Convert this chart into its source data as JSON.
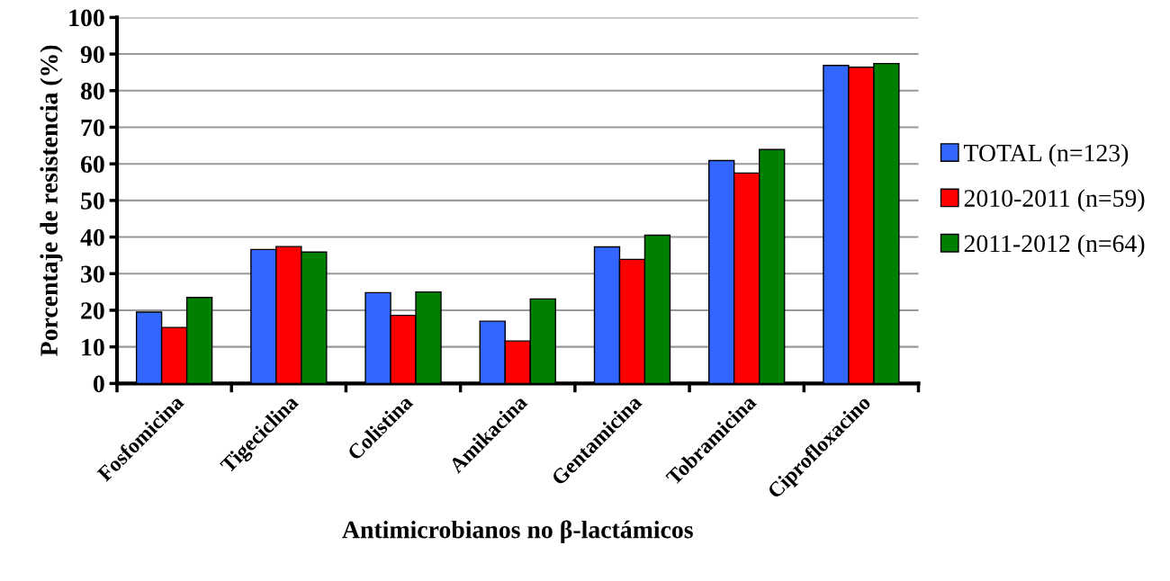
{
  "chart_data": {
    "type": "bar",
    "xlabel": "Antimicrobianos no β-lactámicos",
    "ylabel": "Porcentaje de resistencia (%)",
    "categories": [
      "Fosfomicina",
      "Tigeciclina",
      "Colistina",
      "Amikacina",
      "Gentamicina",
      "Tobramicina",
      "Ciprofloxacino"
    ],
    "series": [
      {
        "name": "TOTAL (n=123)",
        "color": "#3366ff",
        "values": [
          19.5,
          36.6,
          24.8,
          17.0,
          37.3,
          60.9,
          86.9
        ]
      },
      {
        "name": "2010-2011 (n=59)",
        "color": "#ff0000",
        "values": [
          15.3,
          37.4,
          18.6,
          11.6,
          33.9,
          57.5,
          86.4
        ]
      },
      {
        "name": "2011-2012 (n=64)",
        "color": "#008000",
        "values": [
          23.5,
          35.9,
          25.0,
          23.1,
          40.5,
          63.9,
          87.4
        ]
      }
    ],
    "ylim": [
      0,
      100
    ],
    "yticks": [
      0,
      10,
      20,
      30,
      40,
      50,
      60,
      70,
      80,
      90,
      100
    ],
    "grid": "y",
    "legend": "right"
  }
}
